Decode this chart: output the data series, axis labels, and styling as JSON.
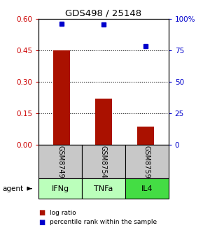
{
  "title": "GDS498 / 25148",
  "categories": [
    "IFNg",
    "TNFa",
    "IL4"
  ],
  "sample_ids": [
    "GSM8749",
    "GSM8754",
    "GSM8759"
  ],
  "log_ratios": [
    0.45,
    0.22,
    0.085
  ],
  "percentile_ranks": [
    0.96,
    0.955,
    0.785
  ],
  "left_ylim": [
    0,
    0.6
  ],
  "right_ylim": [
    0,
    1.0
  ],
  "left_yticks": [
    0,
    0.15,
    0.3,
    0.45,
    0.6
  ],
  "right_yticks": [
    0,
    0.25,
    0.5,
    0.75,
    1.0
  ],
  "right_yticklabels": [
    "0",
    "25",
    "50",
    "75",
    "100%"
  ],
  "bar_color": "#aa1100",
  "dot_color": "#0000cc",
  "grid_color": "#000000",
  "left_tick_color": "#cc0000",
  "right_tick_color": "#0000cc",
  "sample_box_color": "#c8c8c8",
  "agent_box_colors": [
    "#bbffbb",
    "#bbffbb",
    "#44dd44"
  ],
  "agent_box_border": "#000000",
  "bg_color": "#ffffff",
  "bar_width": 0.4
}
